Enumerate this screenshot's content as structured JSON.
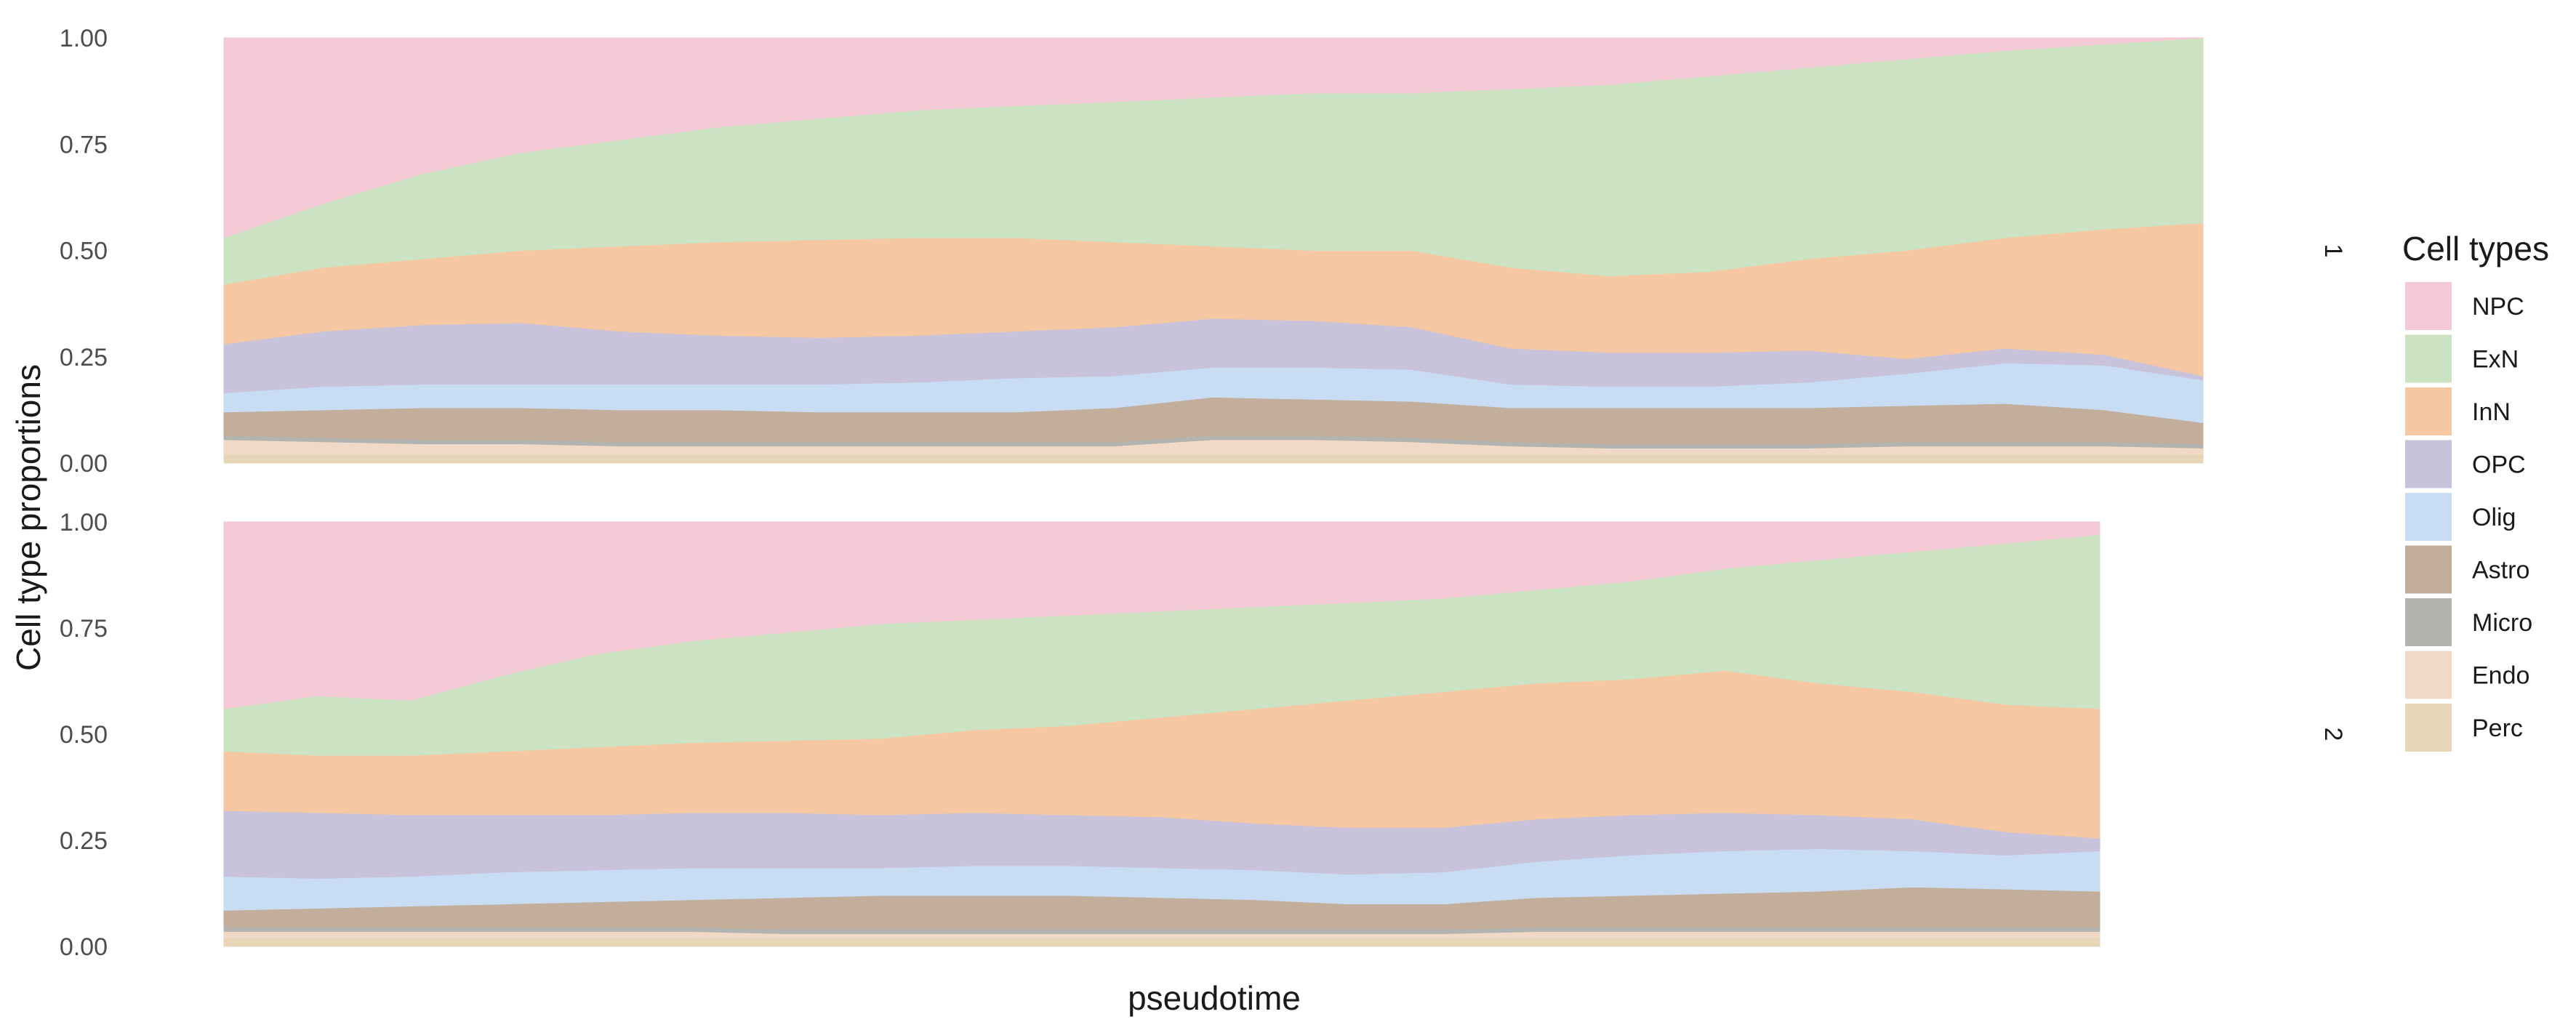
{
  "chart_data": {
    "type": "area",
    "stacked": true,
    "ylabel": "Cell type proportions",
    "xlabel": "pseudotime",
    "ylim": [
      0,
      1
    ],
    "y_ticks": [
      "0.00",
      "0.25",
      "0.50",
      "0.75",
      "1.00"
    ],
    "x_ticks": [],
    "grid": false,
    "legend": {
      "title": "Cell types",
      "position": "right",
      "entries": [
        "NPC",
        "ExN",
        "InN",
        "OPC",
        "Olig",
        "Astro",
        "Micro",
        "Endo",
        "Perc"
      ]
    },
    "colors": {
      "NPC": "#F4C9D6",
      "ExN": "#CCE3C3",
      "InN": "#F5C7A2",
      "OPC": "#C8C3DA",
      "Olig": "#C8DDF4",
      "Astro": "#C2AE9A",
      "Micro": "#B3B3B0",
      "Endo": "#F0D9C6",
      "Perc": "#E6D5B6"
    },
    "stack_order_bottom_to_top": [
      "Perc",
      "Endo",
      "Micro",
      "Astro",
      "Olig",
      "OPC",
      "InN",
      "ExN",
      "NPC"
    ],
    "panels": [
      {
        "strip_label": "1",
        "x": [
          0.0,
          0.05,
          0.1,
          0.15,
          0.2,
          0.25,
          0.3,
          0.35,
          0.4,
          0.45,
          0.5,
          0.55,
          0.6,
          0.65,
          0.7,
          0.75,
          0.8,
          0.85,
          0.9,
          0.95,
          1.0
        ],
        "cumulative_tops": {
          "Perc": [
            0.02,
            0.02,
            0.02,
            0.02,
            0.02,
            0.02,
            0.02,
            0.02,
            0.02,
            0.02,
            0.02,
            0.02,
            0.02,
            0.02,
            0.02,
            0.02,
            0.02,
            0.02,
            0.02,
            0.02,
            0.02
          ],
          "Endo": [
            0.055,
            0.05,
            0.045,
            0.045,
            0.04,
            0.04,
            0.04,
            0.04,
            0.04,
            0.04,
            0.055,
            0.055,
            0.05,
            0.04,
            0.035,
            0.035,
            0.035,
            0.04,
            0.04,
            0.04,
            0.035
          ],
          "Micro": [
            0.065,
            0.06,
            0.055,
            0.055,
            0.05,
            0.05,
            0.05,
            0.05,
            0.05,
            0.05,
            0.065,
            0.065,
            0.06,
            0.05,
            0.045,
            0.045,
            0.045,
            0.05,
            0.05,
            0.05,
            0.045
          ],
          "Astro": [
            0.12,
            0.125,
            0.13,
            0.13,
            0.125,
            0.125,
            0.12,
            0.12,
            0.12,
            0.13,
            0.155,
            0.15,
            0.145,
            0.13,
            0.13,
            0.13,
            0.13,
            0.135,
            0.14,
            0.125,
            0.095
          ],
          "Olig": [
            0.165,
            0.18,
            0.185,
            0.185,
            0.185,
            0.185,
            0.185,
            0.19,
            0.2,
            0.205,
            0.225,
            0.225,
            0.22,
            0.185,
            0.18,
            0.18,
            0.19,
            0.21,
            0.235,
            0.23,
            0.195
          ],
          "OPC": [
            0.28,
            0.31,
            0.325,
            0.33,
            0.31,
            0.3,
            0.295,
            0.3,
            0.31,
            0.32,
            0.34,
            0.335,
            0.32,
            0.27,
            0.26,
            0.26,
            0.265,
            0.245,
            0.27,
            0.255,
            0.205
          ],
          "InN": [
            0.42,
            0.46,
            0.48,
            0.5,
            0.51,
            0.52,
            0.525,
            0.53,
            0.53,
            0.52,
            0.51,
            0.5,
            0.5,
            0.46,
            0.44,
            0.45,
            0.48,
            0.5,
            0.53,
            0.55,
            0.565
          ],
          "ExN": [
            0.53,
            0.61,
            0.68,
            0.73,
            0.76,
            0.79,
            0.81,
            0.83,
            0.84,
            0.85,
            0.86,
            0.87,
            0.87,
            0.88,
            0.89,
            0.91,
            0.93,
            0.95,
            0.97,
            0.985,
            1.0
          ],
          "NPC": [
            1,
            1,
            1,
            1,
            1,
            1,
            1,
            1,
            1,
            1,
            1,
            1,
            1,
            1,
            1,
            1,
            1,
            1,
            1,
            1,
            1
          ]
        }
      },
      {
        "strip_label": "2",
        "x": [
          0.0,
          0.05,
          0.1,
          0.15,
          0.2,
          0.25,
          0.3,
          0.35,
          0.4,
          0.45,
          0.5,
          0.55,
          0.6,
          0.65,
          0.7,
          0.75,
          0.8,
          0.85,
          0.9,
          0.95,
          1.0
        ],
        "cumulative_tops": {
          "Perc": [
            0.02,
            0.02,
            0.02,
            0.02,
            0.02,
            0.02,
            0.02,
            0.02,
            0.02,
            0.02,
            0.02,
            0.02,
            0.02,
            0.02,
            0.02,
            0.02,
            0.02,
            0.02,
            0.02,
            0.02,
            0.02
          ],
          "Endo": [
            0.035,
            0.035,
            0.035,
            0.035,
            0.035,
            0.035,
            0.03,
            0.03,
            0.03,
            0.03,
            0.03,
            0.03,
            0.03,
            0.03,
            0.035,
            0.035,
            0.035,
            0.035,
            0.035,
            0.035,
            0.035
          ],
          "Micro": [
            0.045,
            0.045,
            0.045,
            0.045,
            0.045,
            0.045,
            0.04,
            0.04,
            0.04,
            0.04,
            0.04,
            0.04,
            0.04,
            0.04,
            0.045,
            0.045,
            0.045,
            0.045,
            0.045,
            0.045,
            0.045
          ],
          "Astro": [
            0.085,
            0.09,
            0.095,
            0.1,
            0.105,
            0.11,
            0.115,
            0.12,
            0.12,
            0.12,
            0.115,
            0.11,
            0.1,
            0.1,
            0.115,
            0.12,
            0.125,
            0.13,
            0.14,
            0.135,
            0.13
          ],
          "Olig": [
            0.165,
            0.16,
            0.165,
            0.175,
            0.18,
            0.185,
            0.185,
            0.185,
            0.19,
            0.19,
            0.185,
            0.18,
            0.17,
            0.175,
            0.2,
            0.215,
            0.225,
            0.23,
            0.225,
            0.215,
            0.225
          ],
          "OPC": [
            0.32,
            0.315,
            0.31,
            0.31,
            0.31,
            0.315,
            0.315,
            0.31,
            0.315,
            0.31,
            0.305,
            0.29,
            0.28,
            0.28,
            0.3,
            0.31,
            0.315,
            0.31,
            0.3,
            0.27,
            0.255
          ],
          "InN": [
            0.46,
            0.45,
            0.45,
            0.46,
            0.47,
            0.48,
            0.485,
            0.49,
            0.51,
            0.52,
            0.54,
            0.56,
            0.58,
            0.6,
            0.62,
            0.63,
            0.65,
            0.62,
            0.6,
            0.57,
            0.56
          ],
          "ExN": [
            0.56,
            0.59,
            0.58,
            0.64,
            0.69,
            0.72,
            0.74,
            0.76,
            0.77,
            0.78,
            0.79,
            0.8,
            0.81,
            0.82,
            0.84,
            0.86,
            0.89,
            0.91,
            0.93,
            0.95,
            0.97
          ],
          "NPC": [
            1,
            1,
            1,
            1,
            1,
            1,
            1,
            1,
            1,
            1,
            1,
            1,
            1,
            1,
            1,
            1,
            1,
            1,
            1,
            1,
            1
          ]
        }
      }
    ]
  }
}
